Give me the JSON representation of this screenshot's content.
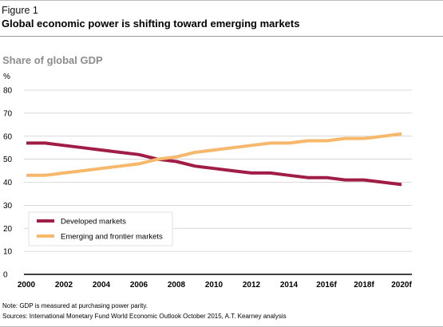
{
  "figure": {
    "label": "Figure 1",
    "title": "Global economic power is shifting toward emerging markets",
    "subtitle": "Share of global GDP"
  },
  "colors": {
    "developed": "#a01e45",
    "emerging": "#f7b86c",
    "grid": "#cccccc",
    "axis": "#000000"
  },
  "chart_data": {
    "type": "line",
    "y_unit": "%",
    "x": [
      "2000",
      "2001",
      "2002",
      "2003",
      "2004",
      "2005",
      "2006",
      "2007",
      "2008",
      "2009",
      "2010",
      "2011",
      "2012",
      "2013",
      "2014",
      "2015",
      "2016f",
      "2017f",
      "2018f",
      "2019f",
      "2020f"
    ],
    "x_tick_labels": [
      "2000",
      "2002",
      "2004",
      "2006",
      "2008",
      "2010",
      "2012",
      "2014",
      "2016f",
      "2018f",
      "2020f"
    ],
    "y_ticks": [
      0,
      10,
      20,
      30,
      40,
      50,
      60,
      70,
      80
    ],
    "ylim": [
      0,
      80
    ],
    "grid": true,
    "legend_position": "bottom-left",
    "series": [
      {
        "name": "Developed markets",
        "color": "#a01e45",
        "values": [
          57,
          57,
          56,
          55,
          54,
          53,
          52,
          50,
          49,
          47,
          46,
          45,
          44,
          44,
          43,
          42,
          42,
          41,
          41,
          40,
          39
        ]
      },
      {
        "name": "Emerging and frontier markets",
        "color": "#f7b86c",
        "values": [
          43,
          43,
          44,
          45,
          46,
          47,
          48,
          50,
          51,
          53,
          54,
          55,
          56,
          57,
          57,
          58,
          58,
          59,
          59,
          60,
          61
        ]
      }
    ]
  },
  "notes": {
    "note": "Note: GDP is measured at purchasing power parity.",
    "sources": "Sources: International Monetary Fund World Economic Outlook October 2015, A.T. Kearney analysis"
  }
}
